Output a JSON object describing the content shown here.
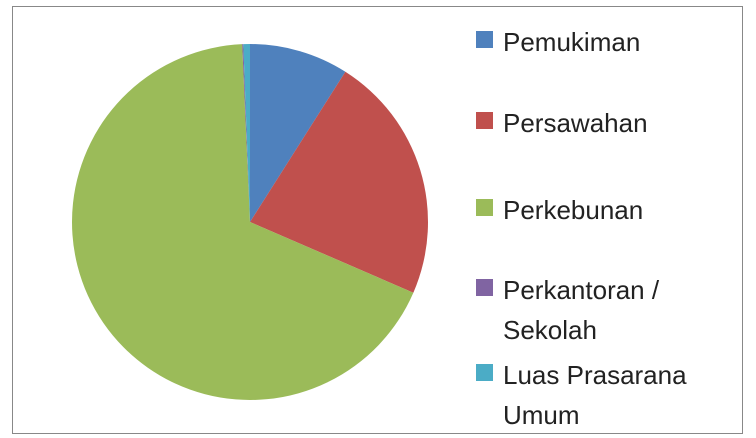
{
  "chart_data": {
    "type": "pie",
    "categories": [
      "Pemukiman",
      "Persawahan",
      "Perkebunan",
      "Perkantoran / Sekolah",
      "Luas Prasarana Umum"
    ],
    "values": [
      9,
      22.5,
      67.8,
      0.1,
      0.6
    ],
    "colors": [
      "#4f81bd",
      "#c0504d",
      "#9bbb59",
      "#8064a2",
      "#4bacc6"
    ],
    "legend": "right"
  }
}
